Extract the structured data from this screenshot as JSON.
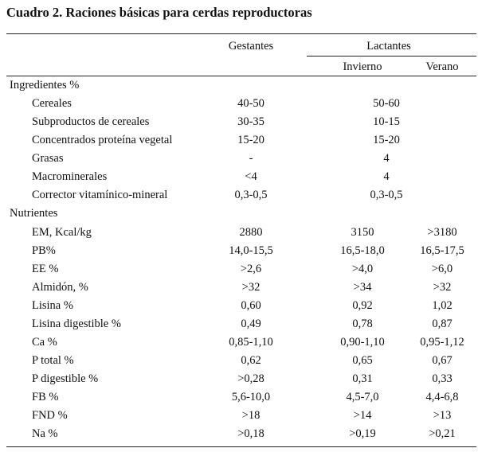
{
  "title": "Cuadro 2. Raciones básicas para cerdas reproductoras",
  "headers": {
    "gestantes": "Gestantes",
    "lactantes": "Lactantes",
    "invierno": "Invierno",
    "verano": "Verano"
  },
  "sections": [
    {
      "label": "Ingredientes %",
      "rows": [
        {
          "label": "Cereales",
          "gestantes": "40-50",
          "lactantes": "50-60"
        },
        {
          "label": "Subproductos de cereales",
          "gestantes": "30-35",
          "lactantes": "10-15"
        },
        {
          "label": "Concentrados proteína vegetal",
          "gestantes": "15-20",
          "lactantes": "15-20"
        },
        {
          "label": "Grasas",
          "gestantes": "-",
          "lactantes": "4"
        },
        {
          "label": "Macrominerales",
          "gestantes": "<4",
          "lactantes": "4"
        },
        {
          "label": "Corrector vitamínico-mineral",
          "gestantes": "0,3-0,5",
          "lactantes": "0,3-0,5"
        }
      ]
    },
    {
      "label": "Nutrientes",
      "rows": [
        {
          "label": "EM, Kcal/kg",
          "gestantes": "2880",
          "invierno": "3150",
          "verano": ">3180"
        },
        {
          "label": "PB%",
          "gestantes": "14,0-15,5",
          "invierno": "16,5-18,0",
          "verano": "16,5-17,5"
        },
        {
          "label": "EE %",
          "gestantes": ">2,6",
          "invierno": ">4,0",
          "verano": ">6,0"
        },
        {
          "label": "Almidón, %",
          "gestantes": ">32",
          "invierno": ">34",
          "verano": ">32"
        },
        {
          "label": "Lisina %",
          "gestantes": "0,60",
          "invierno": "0,92",
          "verano": "1,02"
        },
        {
          "label": "Lisina digestible %",
          "gestantes": "0,49",
          "invierno": "0,78",
          "verano": "0,87"
        },
        {
          "label": "Ca %",
          "gestantes": "0,85-1,10",
          "invierno": "0,90-1,10",
          "verano": "0,95-1,12"
        },
        {
          "label": "P total %",
          "gestantes": "0,62",
          "invierno": "0,65",
          "verano": "0,67"
        },
        {
          "label": "P digestible %",
          "gestantes": ">0,28",
          "invierno": "0,31",
          "verano": "0,33"
        },
        {
          "label": "FB %",
          "gestantes": "5,6-10,0",
          "invierno": "4,5-7,0",
          "verano": "4,4-6,8"
        },
        {
          "label": "FND %",
          "gestantes": ">18",
          "invierno": ">14",
          "verano": ">13"
        },
        {
          "label": "Na %",
          "gestantes": ">0,18",
          "invierno": ">0,19",
          "verano": ">0,21"
        }
      ]
    }
  ]
}
